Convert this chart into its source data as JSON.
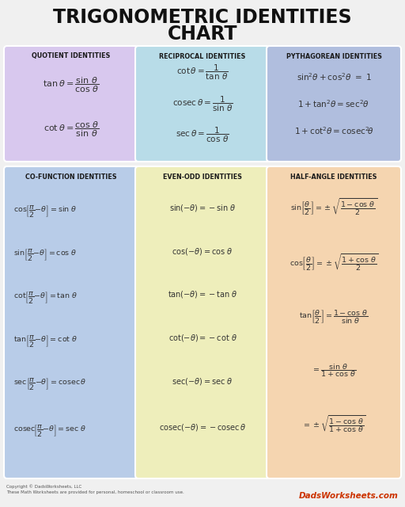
{
  "title_line1": "TRIGONOMETRIC IDENTITIES",
  "title_line2": "CHART",
  "bg_color": "#f0f0f0",
  "title_color": "#111111",
  "panel_colors": {
    "quotient": "#d8c8ee",
    "reciprocal": "#b8dce8",
    "pythagorean": "#b0bede",
    "cofunction": "#b8cce8",
    "evenodd": "#eeeebb",
    "halfangle": "#f5d5b0"
  },
  "footer_text": "Copyright © DadsWorksheets, LLC\nThese Math Worksheets are provided for personal, homeschool or classroom use.",
  "footer_logo": "DadsWorksheets.com"
}
